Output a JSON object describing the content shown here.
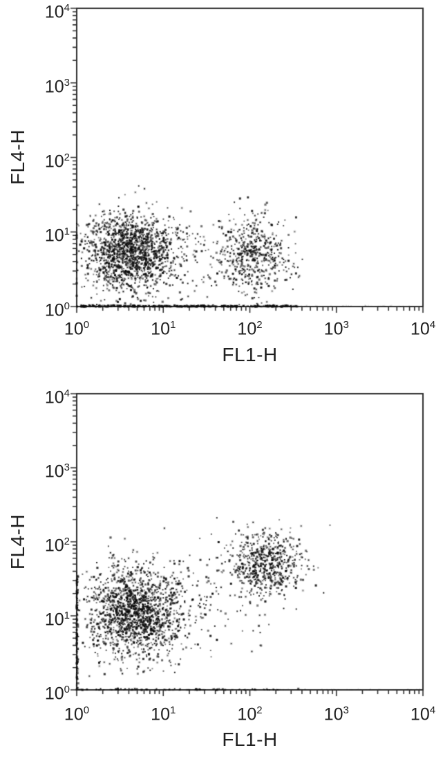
{
  "colors": {
    "background": "#ffffff",
    "point_color": "#0a0a0a",
    "frame_color": "#2f2f2f",
    "text_color": "#1f1f1f"
  },
  "chart_data": [
    {
      "id": "top-panel",
      "type": "scatter",
      "xlabel": "FL1-H",
      "ylabel": "FL4-H",
      "xscale": "log",
      "yscale": "log",
      "xlim": [
        1,
        10000
      ],
      "ylim": [
        1,
        10000
      ],
      "x_tick_labels": [
        "10^0",
        "10^1",
        "10^2",
        "10^3",
        "10^4"
      ],
      "y_tick_labels": [
        "10^0",
        "10^1",
        "10^2",
        "10^3",
        "10^4"
      ],
      "x_tick_exponents": [
        0,
        1,
        2,
        3,
        4
      ],
      "y_tick_exponents": [
        0,
        1,
        2,
        3,
        4
      ],
      "grid": false,
      "legend": false,
      "populations": [
        {
          "name": "FL1-low FL4-low main cluster",
          "approx_center": {
            "FL1-H": 4.2,
            "FL4-H": 5.2
          },
          "log10_center": [
            0.62,
            0.72
          ],
          "log10_sigma": [
            0.27,
            0.26
          ],
          "events": 1550
        },
        {
          "name": "FL1-positive FL4-low cluster",
          "approx_center": {
            "FL1-H": 110,
            "FL4-H": 5.0
          },
          "log10_center": [
            2.05,
            0.7
          ],
          "log10_sigma": [
            0.2,
            0.26
          ],
          "events": 520
        },
        {
          "name": "sparse events between clusters",
          "approx_center": {
            "FL1-H": 25,
            "FL4-H": 4.0
          },
          "log10_center": [
            1.42,
            0.6
          ],
          "log10_sigma": [
            0.38,
            0.28
          ],
          "events": 100
        },
        {
          "name": "events piled on FL4-H = 1 baseline",
          "baseline_axis": "x",
          "log10_x_range": [
            0,
            2.55
          ],
          "log10_y": 0,
          "events": 420
        },
        {
          "name": "faint trace along baseline right of clusters",
          "baseline_axis": "x",
          "log10_x_range": [
            2.5,
            4.0
          ],
          "log10_y": 0,
          "events": 70,
          "faint": true
        }
      ]
    },
    {
      "id": "bottom-panel",
      "type": "scatter",
      "xlabel": "FL1-H",
      "ylabel": "FL4-H",
      "xscale": "log",
      "yscale": "log",
      "xlim": [
        1,
        10000
      ],
      "ylim": [
        1,
        10000
      ],
      "x_tick_labels": [
        "10^0",
        "10^1",
        "10^2",
        "10^3",
        "10^4"
      ],
      "y_tick_labels": [
        "10^0",
        "10^1",
        "10^2",
        "10^3",
        "10^4"
      ],
      "x_tick_exponents": [
        0,
        1,
        2,
        3,
        4
      ],
      "y_tick_exponents": [
        0,
        1,
        2,
        3,
        4
      ],
      "grid": false,
      "legend": false,
      "populations": [
        {
          "name": "FL1-low FL4-intermediate main cluster",
          "approx_center": {
            "FL1-H": 4.5,
            "FL4-H": 11
          },
          "log10_center": [
            0.66,
            1.05
          ],
          "log10_sigma": [
            0.28,
            0.31
          ],
          "events": 1600
        },
        {
          "name": "double-positive cluster",
          "approx_center": {
            "FL1-H": 155,
            "FL4-H": 50
          },
          "log10_center": [
            2.19,
            1.7
          ],
          "log10_sigma": [
            0.21,
            0.23
          ],
          "events": 620
        },
        {
          "name": "sparse diagonal trail between clusters",
          "approx_center": {
            "FL1-H": 35,
            "FL4-H": 18
          },
          "log10_center": [
            1.55,
            1.25
          ],
          "log10_sigma": [
            0.45,
            0.42
          ],
          "events": 140
        },
        {
          "name": "events piled on FL1-H = 1 left axis",
          "baseline_axis": "y",
          "log10_y_range": [
            0,
            1.55
          ],
          "log10_x": 0,
          "events": 140
        },
        {
          "name": "events piled on FL4-H = 1 baseline",
          "baseline_axis": "x",
          "log10_x_range": [
            0,
            2.35
          ],
          "log10_y": 0,
          "events": 90
        },
        {
          "name": "faint trace along baseline right of clusters",
          "baseline_axis": "x",
          "log10_x_range": [
            2.3,
            4.0
          ],
          "log10_y": 0,
          "events": 60,
          "faint": true
        }
      ]
    }
  ]
}
